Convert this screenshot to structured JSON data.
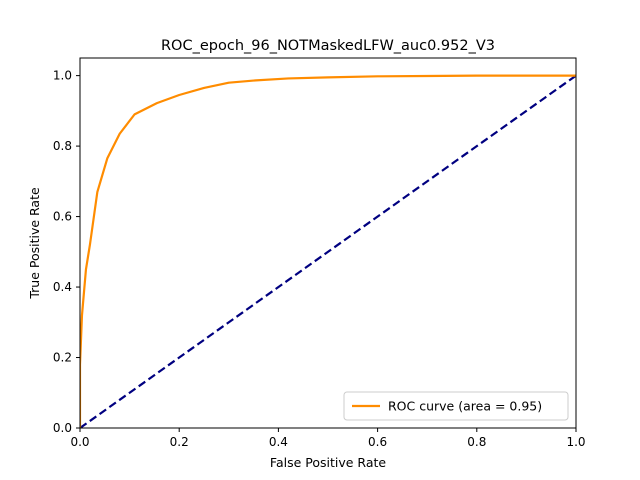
{
  "chart_data": {
    "type": "line",
    "title": "ROC_epoch_96_NOTMaskedLFW_auc0.952_V3",
    "xlabel": "False Positive Rate",
    "ylabel": "True Positive Rate",
    "xlim": [
      0.0,
      1.0
    ],
    "ylim": [
      0.0,
      1.05
    ],
    "xticks": [
      "0.0",
      "0.2",
      "0.4",
      "0.6",
      "0.8",
      "1.0"
    ],
    "yticks": [
      "0.0",
      "0.2",
      "0.4",
      "0.6",
      "0.8",
      "1.0"
    ],
    "grid": false,
    "legend_position": "lower-right",
    "series": [
      {
        "name": "ROC curve (area = 0.95)",
        "color": "#ff8c00",
        "style": "solid",
        "x": [
          0.0,
          0.0,
          0.004,
          0.012,
          0.02,
          0.035,
          0.055,
          0.08,
          0.11,
          0.155,
          0.2,
          0.25,
          0.3,
          0.35,
          0.42,
          0.5,
          0.6,
          0.7,
          0.8,
          0.9,
          1.0
        ],
        "y": [
          0.0,
          0.18,
          0.32,
          0.45,
          0.52,
          0.67,
          0.765,
          0.835,
          0.89,
          0.922,
          0.945,
          0.965,
          0.98,
          0.986,
          0.992,
          0.995,
          0.998,
          0.999,
          1.0,
          1.0,
          1.0
        ]
      },
      {
        "name": "",
        "color": "#000080",
        "style": "dashed",
        "x": [
          0.0,
          1.0
        ],
        "y": [
          0.0,
          1.0
        ]
      }
    ]
  }
}
